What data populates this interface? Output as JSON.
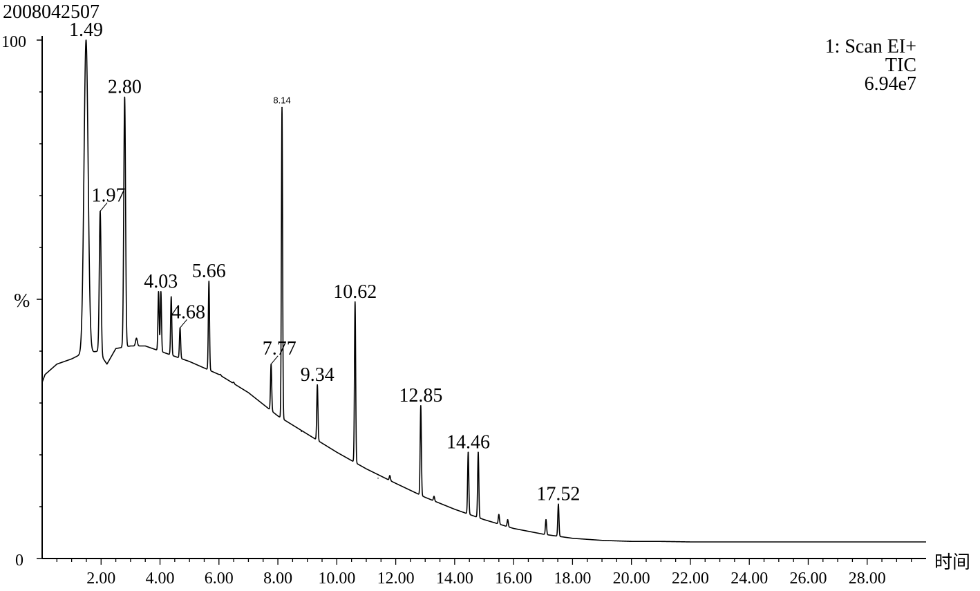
{
  "chart_data": {
    "type": "line",
    "sample_id": "2008042507",
    "ylabel": "%",
    "xlabel": "时间",
    "y_ticks": [
      "100",
      "0"
    ],
    "x_ticks": [
      "2.00",
      "4.00",
      "6.00",
      "8.00",
      "10.00",
      "12.00",
      "14.00",
      "16.00",
      "18.00",
      "20.00",
      "22.00",
      "24.00",
      "26.00",
      "28.00"
    ],
    "xlim": [
      0.0,
      30.0
    ],
    "ylim": [
      0,
      100
    ],
    "info": {
      "scan": "1: Scan EI+",
      "trace": "TIC",
      "max_intensity": "6.94e7"
    },
    "baseline": [
      [
        0.0,
        34
      ],
      [
        0.1,
        35.5
      ],
      [
        0.5,
        37.5
      ],
      [
        1.0,
        38.5
      ],
      [
        1.35,
        39.5
      ],
      [
        1.9,
        40
      ],
      [
        2.2,
        37.5
      ],
      [
        2.5,
        40.5
      ],
      [
        3.0,
        41
      ],
      [
        3.5,
        41
      ],
      [
        4.0,
        40
      ],
      [
        5.0,
        38
      ],
      [
        6.0,
        35.5
      ],
      [
        7.0,
        32
      ],
      [
        8.0,
        27.5
      ],
      [
        9.0,
        24
      ],
      [
        10.0,
        20.5
      ],
      [
        11.0,
        17.3
      ],
      [
        12.0,
        14.5
      ],
      [
        13.0,
        11.8
      ],
      [
        14.0,
        9.5
      ],
      [
        15.0,
        7.5
      ],
      [
        16.0,
        5.8
      ],
      [
        17.0,
        4.7
      ],
      [
        18.0,
        3.9
      ],
      [
        19.0,
        3.5
      ],
      [
        20.0,
        3.3
      ],
      [
        21.0,
        3.3
      ],
      [
        22.0,
        3.2
      ],
      [
        30.0,
        3.2
      ]
    ],
    "peaks": [
      {
        "rt": 1.49,
        "label": "1.49",
        "height": 100,
        "width": 0.07
      },
      {
        "rt": 1.97,
        "label": "1.97",
        "height": 67,
        "width": 0.03
      },
      {
        "rt": 2.8,
        "label": "2.80",
        "height": 89,
        "width": 0.03
      },
      {
        "rt": 3.2,
        "label": "",
        "height": 42.5,
        "width": 0.03
      },
      {
        "rt": 3.95,
        "label": "",
        "height": 51.5,
        "width": 0.02
      },
      {
        "rt": 4.03,
        "label": "4.03",
        "height": 51.5,
        "width": 0.02
      },
      {
        "rt": 4.38,
        "label": "",
        "height": 50.5,
        "width": 0.02
      },
      {
        "rt": 4.68,
        "label": "4.68",
        "height": 44.5,
        "width": 0.02
      },
      {
        "rt": 5.66,
        "label": "5.66",
        "height": 53.5,
        "width": 0.02
      },
      {
        "rt": 6.05,
        "label": "",
        "height": 35.5,
        "width": 0.02
      },
      {
        "rt": 6.5,
        "label": "",
        "height": 34,
        "width": 0.02
      },
      {
        "rt": 7.77,
        "label": "7.77",
        "height": 37.5,
        "width": 0.02
      },
      {
        "rt": 8.14,
        "label": "8.14",
        "height": 87,
        "width": 0.02
      },
      {
        "rt": 8.8,
        "label": "",
        "height": 24.5,
        "width": 0.02
      },
      {
        "rt": 9.34,
        "label": "9.34",
        "height": 33.5,
        "width": 0.02
      },
      {
        "rt": 10.62,
        "label": "10.62",
        "height": 49.5,
        "width": 0.02
      },
      {
        "rt": 11.4,
        "label": "",
        "height": 15.5,
        "width": 0.02
      },
      {
        "rt": 11.8,
        "label": "",
        "height": 16,
        "width": 0.02
      },
      {
        "rt": 12.85,
        "label": "12.85",
        "height": 29.5,
        "width": 0.02
      },
      {
        "rt": 13.3,
        "label": "",
        "height": 12,
        "width": 0.02
      },
      {
        "rt": 14.46,
        "label": "14.46",
        "height": 20.5,
        "width": 0.02
      },
      {
        "rt": 14.8,
        "label": "",
        "height": 20.5,
        "width": 0.02
      },
      {
        "rt": 15.5,
        "label": "",
        "height": 8.5,
        "width": 0.02
      },
      {
        "rt": 15.8,
        "label": "",
        "height": 7.5,
        "width": 0.02
      },
      {
        "rt": 17.1,
        "label": "",
        "height": 7.5,
        "width": 0.02
      },
      {
        "rt": 17.52,
        "label": "17.52",
        "height": 10.5,
        "width": 0.02
      }
    ]
  }
}
